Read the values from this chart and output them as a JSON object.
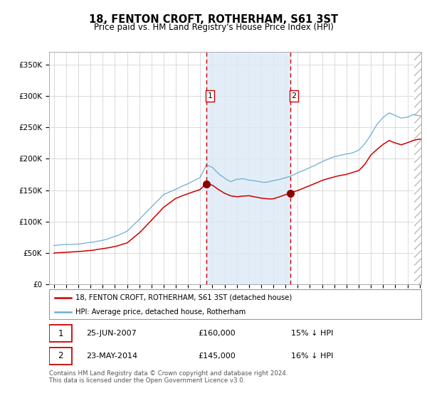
{
  "title": "18, FENTON CROFT, ROTHERHAM, S61 3ST",
  "subtitle": "Price paid vs. HM Land Registry's House Price Index (HPI)",
  "legend_line1": "18, FENTON CROFT, ROTHERHAM, S61 3ST (detached house)",
  "legend_line2": "HPI: Average price, detached house, Rotherham",
  "transaction1_date": "25-JUN-2007",
  "transaction1_price": 160000,
  "transaction1_pct": "15% ↓ HPI",
  "transaction2_date": "23-MAY-2014",
  "transaction2_price": 145000,
  "transaction2_pct": "16% ↓ HPI",
  "hpi_color": "#6baed6",
  "price_color": "#cc0000",
  "dot_color": "#8b0000",
  "dashed_color": "#cc0000",
  "shade_color": "#dce9f5",
  "background_color": "#ffffff",
  "grid_color": "#cccccc",
  "hatch_color": "#bbbbbb",
  "ylim": [
    0,
    370000
  ],
  "yticks": [
    0,
    50000,
    100000,
    150000,
    200000,
    250000,
    300000,
    350000
  ],
  "ytick_labels": [
    "£0",
    "£50K",
    "£100K",
    "£150K",
    "£200K",
    "£250K",
    "£300K",
    "£350K"
  ],
  "footer_text": "Contains HM Land Registry data © Crown copyright and database right 2024.\nThis data is licensed under the Open Government Licence v3.0.",
  "transaction1_year": 2007.49,
  "transaction2_year": 2014.39
}
